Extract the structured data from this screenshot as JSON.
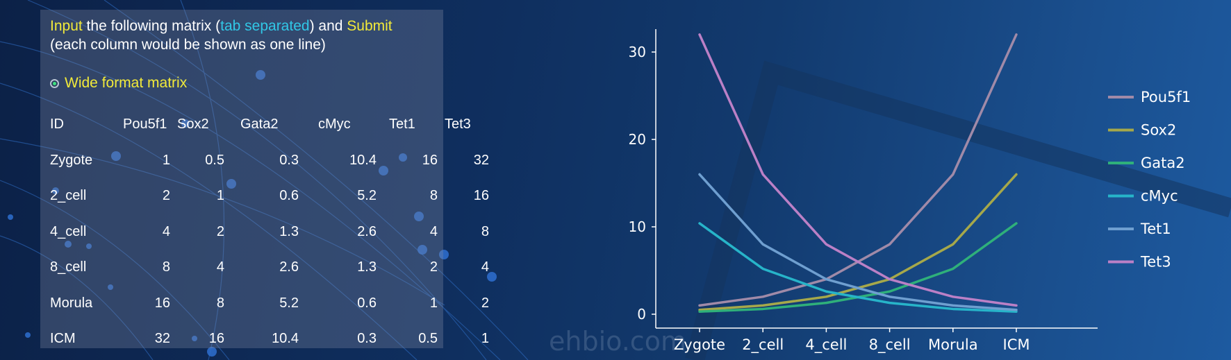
{
  "instruction": {
    "input_word": "Input",
    "middle": " the following matrix (",
    "tab_word": "tab separated",
    "after_tab": ") and ",
    "submit_word": "Submit",
    "line2": "(each column would be shown as one line)"
  },
  "format_option": {
    "label": "Wide format matrix",
    "selected": true
  },
  "matrix": {
    "headers": [
      "ID",
      "Pou5f1",
      "Sox2",
      "Gata2",
      "cMyc",
      "Tet1",
      "Tet3"
    ],
    "rows": [
      [
        "Zygote",
        "1",
        "0.5",
        "0.3",
        "10.4",
        "16",
        "32"
      ],
      [
        "2_cell",
        "2",
        "1",
        "0.6",
        "5.2",
        "8",
        "16"
      ],
      [
        "4_cell",
        "4",
        "2",
        "1.3",
        "2.6",
        "4",
        "8"
      ],
      [
        "8_cell",
        "8",
        "4",
        "2.6",
        "1.3",
        "2",
        "4"
      ],
      [
        "Morula",
        "16",
        "8",
        "5.2",
        "0.6",
        "1",
        "2"
      ],
      [
        "ICM",
        "32",
        "16",
        "10.4",
        "0.3",
        "0.5",
        "1"
      ]
    ]
  },
  "watermark": "ehbio.com",
  "chart_data": {
    "type": "line",
    "title": "",
    "xlabel": "",
    "ylabel": "",
    "categories": [
      "Zygote",
      "2_cell",
      "4_cell",
      "8_cell",
      "Morula",
      "ICM"
    ],
    "ylim": [
      -1,
      33
    ],
    "yticks": [
      0,
      10,
      20,
      30
    ],
    "grid": false,
    "legend_position": "right",
    "series": [
      {
        "name": "Pou5f1",
        "color": "#a08aa8",
        "values": [
          1,
          2,
          4,
          8,
          16,
          32
        ]
      },
      {
        "name": "Sox2",
        "color": "#a6a84a",
        "values": [
          0.5,
          1,
          2,
          4,
          8,
          16
        ]
      },
      {
        "name": "Gata2",
        "color": "#2fb07a",
        "values": [
          0.3,
          0.6,
          1.3,
          2.6,
          5.2,
          10.4
        ]
      },
      {
        "name": "cMyc",
        "color": "#27b4c9",
        "values": [
          10.4,
          5.2,
          2.6,
          1.3,
          0.6,
          0.3
        ]
      },
      {
        "name": "Tet1",
        "color": "#6f9fd0",
        "values": [
          16,
          8,
          4,
          2,
          1,
          0.5
        ]
      },
      {
        "name": "Tet3",
        "color": "#bb80c6",
        "values": [
          32,
          16,
          8,
          4,
          2,
          1
        ]
      }
    ]
  }
}
